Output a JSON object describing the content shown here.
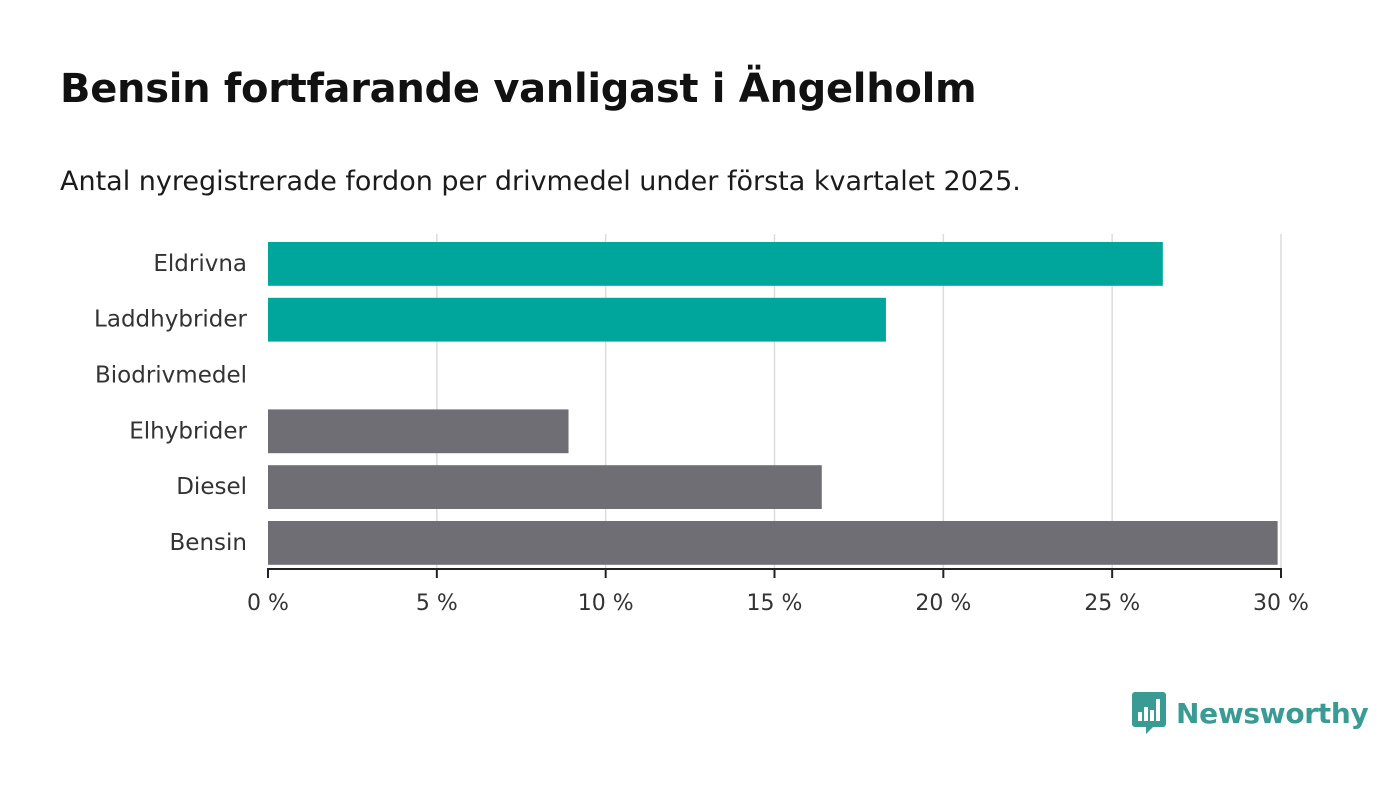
{
  "title": "Bensin fortfarande vanligast i Ängelholm",
  "subtitle": "Antal nyregistrerade fordon per drivmedel under första kvartalet 2025.",
  "brand": {
    "name": "Newsworthy",
    "color": "#3a9a94",
    "icon": "newsworthy-chat-bars-icon"
  },
  "colors": {
    "highlight": "#00a59b",
    "default": "#6f6e75",
    "grid": "#dcdcdc",
    "axis": "#222222"
  },
  "chart_data": {
    "type": "bar",
    "orientation": "horizontal",
    "categories": [
      "Eldrivna",
      "Laddhybrider",
      "Biodrivmedel",
      "Elhybrider",
      "Diesel",
      "Bensin"
    ],
    "values": [
      26.5,
      18.3,
      0,
      8.9,
      16.4,
      29.9
    ],
    "bar_colors": [
      "#00a59b",
      "#00a59b",
      "#6f6e75",
      "#6f6e75",
      "#6f6e75",
      "#6f6e75"
    ],
    "xlim": [
      0,
      30
    ],
    "xticks": [
      0,
      5,
      10,
      15,
      20,
      25,
      30
    ],
    "xtick_labels": [
      "0 %",
      "5 %",
      "10 %",
      "15 %",
      "20 %",
      "25 %",
      "30 %"
    ],
    "grid": "vertical"
  }
}
